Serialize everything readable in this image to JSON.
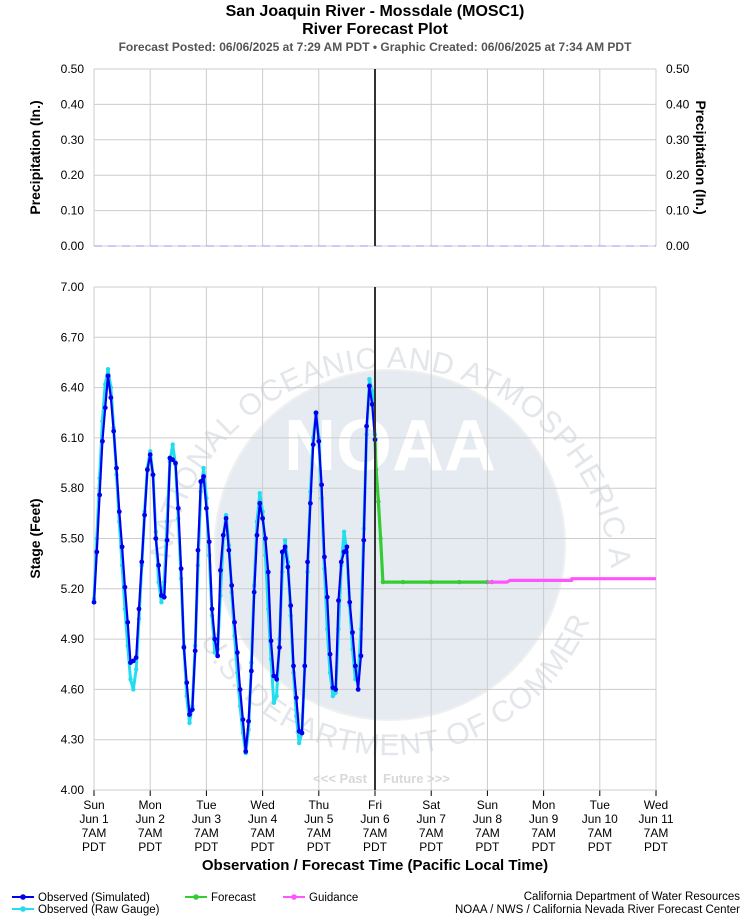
{
  "title": "San Joaquin River - Mossdale (MOSC1)",
  "subtitle": "River Forecast Plot",
  "posted": "Forecast Posted: 06/06/2025 at 7:29 AM PDT  •  Graphic Created: 06/06/2025 at 7:34 AM PDT",
  "credits": [
    "California Department of Water Resources",
    "NOAA / NWS / California Nevada River Forecast Center"
  ],
  "colors": {
    "observed_sim": "#0000ee",
    "observed_raw": "#22ddee",
    "forecast": "#33cc33",
    "guidance": "#ff55ff",
    "precip": "#9999ee",
    "now_line": "#333333",
    "grid": "#cccccc",
    "watermark": "#e6ebf2"
  },
  "watermark": {
    "logo_text": "NOAA",
    "arc_text_top": "NATIONAL OCEANIC AND ATMOSPHERIC ADMINISTRATION",
    "arc_text_bottom": "U.S. DEPARTMENT OF COMMERCE"
  },
  "chart_data": [
    {
      "type": "line",
      "name": "precipitation",
      "ylabel": "Precipitation (In.)",
      "ylabel_right": "Precipitation (In.)",
      "ylim": [
        0,
        0.5
      ],
      "yticks": [
        "0.00",
        "0.10",
        "0.20",
        "0.30",
        "0.40",
        "0.50"
      ],
      "series": [
        {
          "values_const": 0.0
        }
      ]
    },
    {
      "type": "line",
      "name": "stage",
      "ylabel": "Stage (Feet)",
      "xlabel": "Observation / Forecast Time (Pacific Local Time)",
      "ylim": [
        4.0,
        7.0
      ],
      "yticks": [
        "4.00",
        "4.30",
        "4.60",
        "4.90",
        "5.20",
        "5.50",
        "5.80",
        "6.10",
        "6.40",
        "6.70",
        "7.00"
      ],
      "x_start": "2025-06-01 07:00 PDT",
      "x_end": "2025-06-11 07:00 PDT",
      "now": "2025-06-06 07:00 PDT",
      "past_label": "<<< Past",
      "future_label": "Future >>>",
      "xtick_labels": [
        [
          "Sun",
          "Jun 1",
          "7AM",
          "PDT"
        ],
        [
          "Mon",
          "Jun 2",
          "7AM",
          "PDT"
        ],
        [
          "Tue",
          "Jun 3",
          "7AM",
          "PDT"
        ],
        [
          "Wed",
          "Jun 4",
          "7AM",
          "PDT"
        ],
        [
          "Thu",
          "Jun 5",
          "7AM",
          "PDT"
        ],
        [
          "Fri",
          "Jun 6",
          "7AM",
          "PDT"
        ],
        [
          "Sat",
          "Jun 7",
          "7AM",
          "PDT"
        ],
        [
          "Sun",
          "Jun 8",
          "7AM",
          "PDT"
        ],
        [
          "Mon",
          "Jun 9",
          "7AM",
          "PDT"
        ],
        [
          "Tue",
          "Jun 10",
          "7AM",
          "PDT"
        ],
        [
          "Wed",
          "Jun 11",
          "7AM",
          "PDT"
        ]
      ],
      "legend": [
        "Observed (Simulated)",
        "Observed (Raw Gauge)",
        "Forecast",
        "Guidance"
      ],
      "series": [
        {
          "name": "Observed (Simulated)",
          "points": [
            [
              0,
              5.12
            ],
            [
              0.05,
              5.42
            ],
            [
              0.1,
              5.76
            ],
            [
              0.15,
              6.08
            ],
            [
              0.2,
              6.28
            ],
            [
              0.25,
              6.47
            ],
            [
              0.3,
              6.34
            ],
            [
              0.35,
              6.14
            ],
            [
              0.4,
              5.92
            ],
            [
              0.45,
              5.66
            ],
            [
              0.5,
              5.45
            ],
            [
              0.55,
              5.21
            ],
            [
              0.6,
              5.0
            ],
            [
              0.65,
              4.76
            ],
            [
              0.7,
              4.77
            ],
            [
              0.75,
              4.79
            ],
            [
              0.8,
              5.08
            ],
            [
              0.85,
              5.36
            ],
            [
              0.9,
              5.64
            ],
            [
              0.95,
              5.91
            ],
            [
              1.0,
              6.0
            ],
            [
              1.05,
              5.88
            ],
            [
              1.1,
              5.5
            ],
            [
              1.15,
              5.34
            ],
            [
              1.2,
              5.16
            ],
            [
              1.25,
              5.15
            ],
            [
              1.3,
              5.49
            ],
            [
              1.35,
              5.98
            ],
            [
              1.4,
              5.97
            ],
            [
              1.45,
              5.95
            ],
            [
              1.5,
              5.68
            ],
            [
              1.55,
              5.32
            ],
            [
              1.6,
              4.85
            ],
            [
              1.65,
              4.64
            ],
            [
              1.7,
              4.45
            ],
            [
              1.75,
              4.48
            ],
            [
              1.8,
              4.83
            ],
            [
              1.85,
              5.43
            ],
            [
              1.9,
              5.84
            ],
            [
              1.95,
              5.87
            ],
            [
              2.0,
              5.68
            ],
            [
              2.05,
              5.48
            ],
            [
              2.1,
              5.08
            ],
            [
              2.15,
              4.9
            ],
            [
              2.2,
              4.8
            ],
            [
              2.25,
              5.31
            ],
            [
              2.3,
              5.52
            ],
            [
              2.35,
              5.62
            ],
            [
              2.4,
              5.43
            ],
            [
              2.45,
              5.22
            ],
            [
              2.5,
              5.0
            ],
            [
              2.55,
              4.82
            ],
            [
              2.6,
              4.6
            ],
            [
              2.65,
              4.42
            ],
            [
              2.7,
              4.23
            ],
            [
              2.75,
              4.41
            ],
            [
              2.8,
              4.71
            ],
            [
              2.85,
              5.18
            ],
            [
              2.9,
              5.52
            ],
            [
              2.95,
              5.71
            ],
            [
              3.0,
              5.62
            ],
            [
              3.05,
              5.5
            ],
            [
              3.1,
              5.3
            ],
            [
              3.15,
              4.89
            ],
            [
              3.2,
              4.68
            ],
            [
              3.25,
              4.66
            ],
            [
              3.3,
              4.85
            ],
            [
              3.35,
              5.42
            ],
            [
              3.4,
              5.45
            ],
            [
              3.45,
              5.33
            ],
            [
              3.5,
              5.1
            ],
            [
              3.55,
              4.74
            ],
            [
              3.6,
              4.55
            ],
            [
              3.65,
              4.35
            ],
            [
              3.7,
              4.34
            ],
            [
              3.75,
              4.74
            ],
            [
              3.8,
              5.36
            ],
            [
              3.85,
              5.71
            ],
            [
              3.9,
              6.06
            ],
            [
              3.95,
              6.25
            ],
            [
              4.0,
              6.08
            ],
            [
              4.05,
              5.82
            ],
            [
              4.1,
              5.39
            ],
            [
              4.15,
              5.15
            ],
            [
              4.2,
              4.81
            ],
            [
              4.25,
              4.61
            ],
            [
              4.3,
              4.6
            ],
            [
              4.35,
              5.13
            ],
            [
              4.4,
              5.36
            ],
            [
              4.45,
              5.42
            ],
            [
              4.5,
              5.45
            ],
            [
              4.55,
              5.12
            ],
            [
              4.6,
              4.94
            ],
            [
              4.65,
              4.74
            ],
            [
              4.7,
              4.6
            ],
            [
              4.75,
              4.8
            ],
            [
              4.8,
              5.49
            ],
            [
              4.85,
              6.17
            ],
            [
              4.9,
              6.41
            ],
            [
              4.95,
              6.3
            ],
            [
              5.0,
              6.09
            ]
          ]
        },
        {
          "name": "Observed (Raw Gauge)",
          "points": [
            [
              0,
              5.14
            ],
            [
              0.05,
              5.5
            ],
            [
              0.1,
              5.86
            ],
            [
              0.15,
              6.2
            ],
            [
              0.2,
              6.42
            ],
            [
              0.25,
              6.51
            ],
            [
              0.3,
              6.4
            ],
            [
              0.35,
              6.16
            ],
            [
              0.4,
              5.88
            ],
            [
              0.45,
              5.6
            ],
            [
              0.5,
              5.34
            ],
            [
              0.55,
              5.08
            ],
            [
              0.6,
              4.86
            ],
            [
              0.65,
              4.66
            ],
            [
              0.7,
              4.6
            ],
            [
              0.75,
              4.72
            ],
            [
              0.8,
              5.02
            ],
            [
              0.85,
              5.34
            ],
            [
              0.9,
              5.66
            ],
            [
              0.95,
              5.92
            ],
            [
              1.0,
              6.02
            ],
            [
              1.05,
              5.88
            ],
            [
              1.1,
              5.54
            ],
            [
              1.15,
              5.24
            ],
            [
              1.2,
              5.12
            ],
            [
              1.25,
              5.24
            ],
            [
              1.3,
              5.6
            ],
            [
              1.35,
              5.96
            ],
            [
              1.4,
              6.06
            ],
            [
              1.45,
              5.94
            ],
            [
              1.5,
              5.62
            ],
            [
              1.55,
              5.26
            ],
            [
              1.6,
              4.86
            ],
            [
              1.65,
              4.56
            ],
            [
              1.7,
              4.4
            ],
            [
              1.75,
              4.5
            ],
            [
              1.8,
              4.86
            ],
            [
              1.85,
              5.34
            ],
            [
              1.9,
              5.78
            ],
            [
              1.95,
              5.92
            ],
            [
              2.0,
              5.74
            ],
            [
              2.05,
              5.4
            ],
            [
              2.1,
              5.04
            ],
            [
              2.15,
              4.82
            ],
            [
              2.2,
              4.84
            ],
            [
              2.25,
              5.16
            ],
            [
              2.3,
              5.5
            ],
            [
              2.35,
              5.64
            ],
            [
              2.4,
              5.46
            ],
            [
              2.45,
              5.18
            ],
            [
              2.5,
              4.92
            ],
            [
              2.55,
              4.7
            ],
            [
              2.6,
              4.5
            ],
            [
              2.65,
              4.34
            ],
            [
              2.7,
              4.22
            ],
            [
              2.75,
              4.36
            ],
            [
              2.8,
              4.76
            ],
            [
              2.85,
              5.22
            ],
            [
              2.9,
              5.6
            ],
            [
              2.95,
              5.77
            ],
            [
              3.0,
              5.66
            ],
            [
              3.05,
              5.4
            ],
            [
              3.1,
              5.08
            ],
            [
              3.15,
              4.78
            ],
            [
              3.2,
              4.52
            ],
            [
              3.25,
              4.56
            ],
            [
              3.3,
              4.9
            ],
            [
              3.35,
              5.3
            ],
            [
              3.4,
              5.49
            ],
            [
              3.45,
              5.36
            ],
            [
              3.5,
              5.04
            ],
            [
              3.55,
              4.7
            ],
            [
              3.6,
              4.44
            ],
            [
              3.65,
              4.28
            ],
            [
              3.7,
              4.34
            ],
            [
              3.75,
              4.74
            ],
            [
              3.8,
              5.3
            ],
            [
              3.85,
              5.78
            ],
            [
              3.9,
              6.1
            ],
            [
              3.95,
              6.24
            ],
            [
              4.0,
              6.1
            ],
            [
              4.05,
              5.74
            ],
            [
              4.1,
              5.32
            ],
            [
              4.15,
              4.96
            ],
            [
              4.2,
              4.7
            ],
            [
              4.25,
              4.56
            ],
            [
              4.3,
              4.58
            ],
            [
              4.35,
              4.96
            ],
            [
              4.4,
              5.34
            ],
            [
              4.45,
              5.54
            ],
            [
              4.5,
              5.42
            ],
            [
              4.55,
              5.1
            ],
            [
              4.6,
              4.84
            ],
            [
              4.65,
              4.66
            ],
            [
              4.7,
              4.66
            ],
            [
              4.75,
              4.96
            ],
            [
              4.8,
              5.56
            ],
            [
              4.85,
              6.12
            ],
            [
              4.9,
              6.45
            ],
            [
              4.95,
              6.38
            ],
            [
              5.0,
              6.12
            ]
          ]
        },
        {
          "name": "Forecast",
          "points": [
            [
              5.0,
              6.09
            ],
            [
              5.02,
              5.91
            ],
            [
              5.06,
              5.72
            ],
            [
              5.1,
              5.5
            ],
            [
              5.14,
              5.24
            ],
            [
              5.5,
              5.24
            ],
            [
              6.0,
              5.24
            ],
            [
              6.5,
              5.24
            ],
            [
              7.0,
              5.24
            ],
            [
              7.08,
              5.24
            ]
          ]
        },
        {
          "name": "Guidance",
          "points": [
            [
              7.0,
              5.24
            ],
            [
              7.35,
              5.24
            ],
            [
              7.4,
              5.25
            ],
            [
              8.0,
              5.25
            ],
            [
              8.5,
              5.25
            ],
            [
              8.5,
              5.26
            ],
            [
              9.0,
              5.26
            ],
            [
              9.5,
              5.26
            ],
            [
              10.0,
              5.26
            ]
          ]
        }
      ]
    }
  ]
}
